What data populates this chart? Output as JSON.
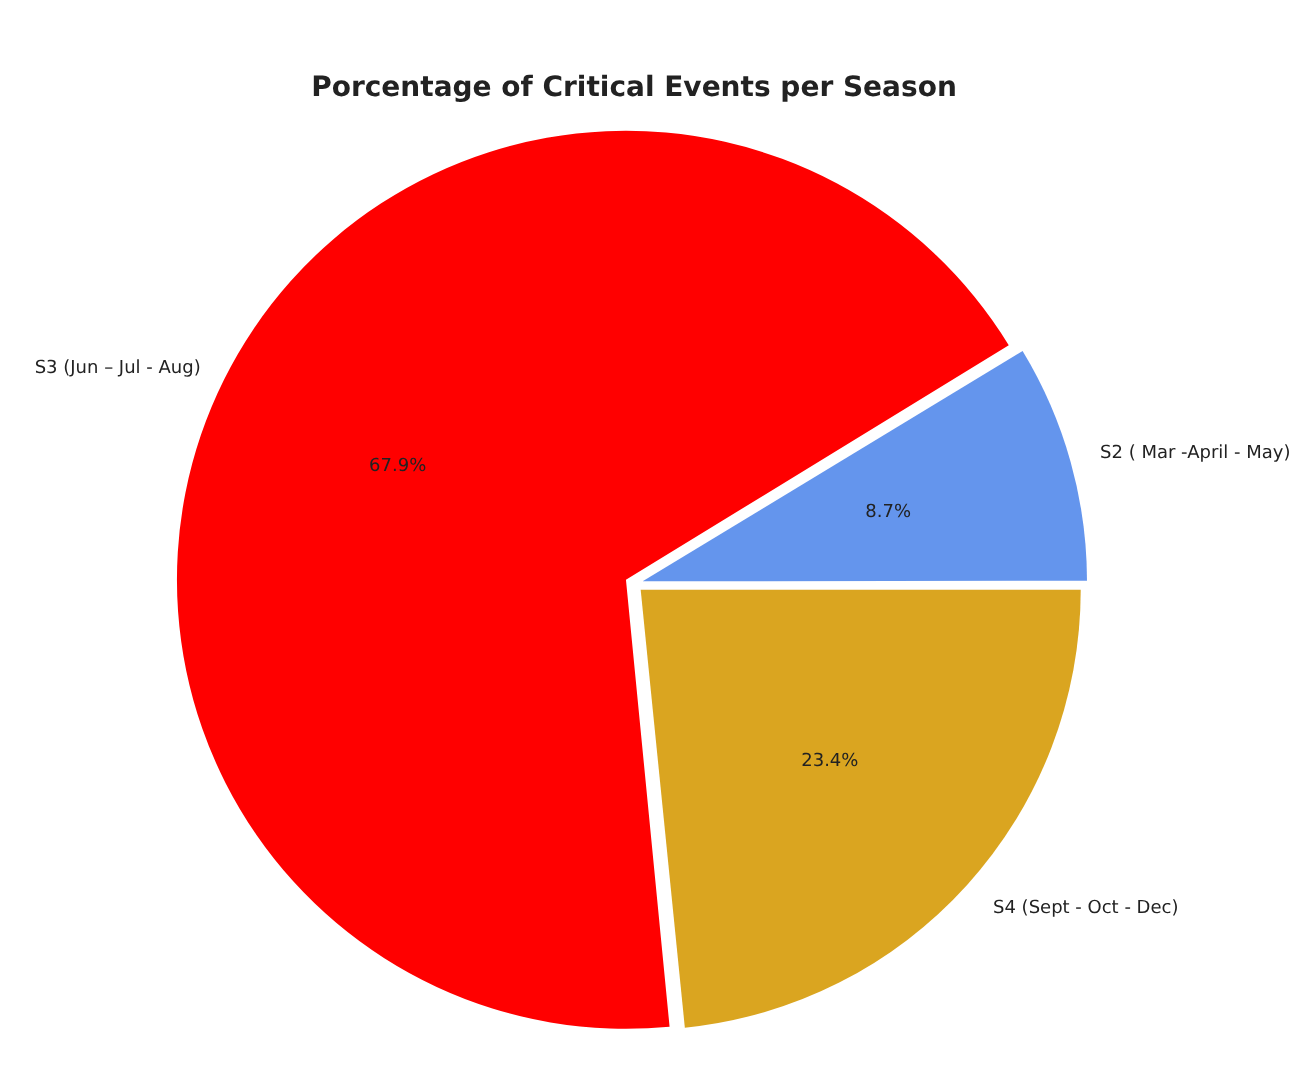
{
  "chart_data": {
    "type": "pie",
    "title": "Porcentage of Critical Events per Season",
    "categories": [
      "S2 ( Mar -April - May)",
      "S3 (Jun – Jul - Aug)",
      "S4 (Sept - Oct - Dec)"
    ],
    "values": [
      8.7,
      67.9,
      23.4
    ],
    "colors": [
      "#6495ed",
      "#ff0000",
      "#daa520"
    ],
    "value_labels": [
      "8.7%",
      "67.9%",
      "23.4%"
    ],
    "legend": false
  }
}
